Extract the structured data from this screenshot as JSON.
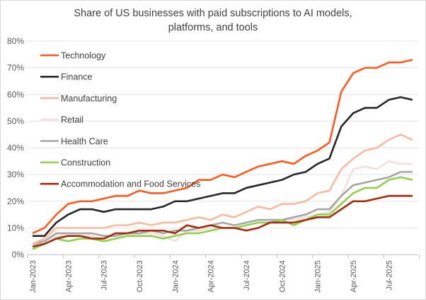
{
  "chart_data": {
    "type": "line",
    "title_line1": "Share of US businesses with paid subscriptions to AI models,",
    "title_line2": "platforms, and tools",
    "xlabel": "",
    "ylabel": "",
    "ylim": [
      0,
      0.8
    ],
    "yticks": [
      "0%",
      "10%",
      "20%",
      "30%",
      "40%",
      "50%",
      "60%",
      "70%",
      "80%"
    ],
    "x": [
      "Jan-2023",
      "Feb-2023",
      "Mar-2023",
      "Apr-2023",
      "May-2023",
      "Jun-2023",
      "Jul-2023",
      "Aug-2023",
      "Sep-2023",
      "Oct-2023",
      "Nov-2023",
      "Dec-2023",
      "Jan-2024",
      "Feb-2024",
      "Mar-2024",
      "Apr-2024",
      "May-2024",
      "Jun-2024",
      "Jul-2024",
      "Aug-2024",
      "Sep-2024",
      "Oct-2024",
      "Nov-2024",
      "Dec-2024",
      "Jan-2025",
      "Feb-2025",
      "Mar-2025",
      "Apr-2025",
      "May-2025",
      "Jun-2025",
      "Jul-2025",
      "Aug-2025",
      "Sep-2025"
    ],
    "xtick_labels": [
      "Jan-2023",
      "Apr-2023",
      "Jul-2023",
      "Oct-2023",
      "Jan-2024",
      "Apr-2024",
      "Jul-2024",
      "Oct-2024",
      "Jan-2025",
      "Apr-2025",
      "Jul-2025"
    ],
    "grid": true,
    "legend_placement": "top-left (inside)",
    "series": [
      {
        "name": "Technology",
        "color": "#ff5a1f",
        "values": [
          8,
          10,
          15,
          19,
          20,
          20,
          21,
          22,
          22,
          24,
          23,
          23,
          24,
          25,
          28,
          28,
          30,
          29,
          31,
          33,
          34,
          35,
          34,
          37,
          39,
          42,
          61,
          68,
          70,
          70,
          72,
          72,
          73
        ]
      },
      {
        "name": "Finance",
        "color": "#262626",
        "values": [
          7,
          7,
          12,
          15,
          17,
          17,
          16,
          17,
          17,
          17,
          17,
          18,
          20,
          20,
          21,
          22,
          23,
          23,
          25,
          26,
          27,
          28,
          30,
          31,
          34,
          36,
          48,
          53,
          55,
          55,
          58,
          59,
          58
        ]
      },
      {
        "name": "Manufacturing",
        "color": "#fbb9a0",
        "values": [
          4,
          6,
          10,
          10,
          10,
          10,
          10,
          11,
          11,
          12,
          11,
          12,
          12,
          13,
          14,
          13,
          15,
          14,
          16,
          18,
          17,
          19,
          19,
          20,
          23,
          24,
          32,
          36,
          39,
          40,
          43,
          45,
          43
        ]
      },
      {
        "name": "Retail",
        "color": "#f2e0dc",
        "values": [
          3,
          5,
          7,
          7,
          7,
          7,
          6,
          7,
          8,
          8,
          8,
          7,
          5,
          9,
          9,
          10,
          10,
          10,
          11,
          12,
          12,
          13,
          13,
          14,
          15,
          16,
          22,
          32,
          33,
          32,
          35,
          34,
          34
        ]
      },
      {
        "name": "Health Care",
        "color": "#a6a6a6",
        "values": [
          4,
          5,
          8,
          8,
          8,
          8,
          7,
          7,
          8,
          8,
          9,
          8,
          9,
          9,
          10,
          11,
          12,
          11,
          12,
          13,
          13,
          13,
          14,
          15,
          17,
          17,
          22,
          26,
          27,
          28,
          29,
          31,
          31
        ]
      },
      {
        "name": "Construction",
        "color": "#8fd14f",
        "values": [
          2,
          4,
          6,
          5,
          6,
          6,
          5,
          6,
          7,
          7,
          7,
          6,
          7,
          8,
          8,
          9,
          10,
          10,
          11,
          12,
          12,
          13,
          11,
          13,
          15,
          15,
          19,
          23,
          25,
          25,
          28,
          29,
          28
        ]
      },
      {
        "name": "Accommodation and Food Services",
        "color": "#a52a0a",
        "values": [
          3,
          4,
          6,
          7,
          7,
          6,
          6,
          8,
          8,
          9,
          9,
          9,
          8,
          11,
          10,
          11,
          10,
          10,
          9,
          10,
          12,
          12,
          12,
          13,
          14,
          14,
          17,
          20,
          20,
          21,
          22,
          22,
          22
        ]
      }
    ]
  }
}
